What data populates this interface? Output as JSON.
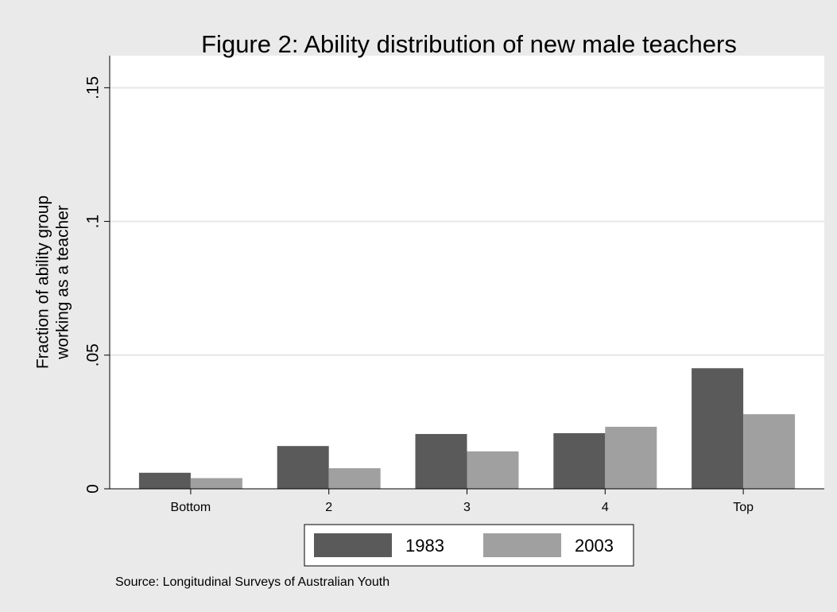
{
  "chart_data": {
    "type": "bar",
    "title": "Figure 2: Ability distribution of new male teachers",
    "y_label": [
      "Fraction of ability group",
      "working as a teacher"
    ],
    "note": "Source: Longitudinal Surveys of Australian Youth",
    "categories": [
      "Bottom",
      "2",
      "3",
      "4",
      "Top"
    ],
    "series": [
      {
        "name": "1983",
        "color": "#5a5a5a",
        "values": [
          0.006,
          0.016,
          0.0205,
          0.0208,
          0.0451
        ]
      },
      {
        "name": "2003",
        "color": "#a0a0a0",
        "values": [
          0.004,
          0.0077,
          0.014,
          0.0232,
          0.0279
        ]
      }
    ],
    "ylim": [
      0,
      0.162
    ],
    "yticks": [
      0,
      {
        "value": 0.05,
        "label": ".05"
      },
      {
        "value": 0.1,
        "label": ".1"
      },
      {
        "value": 0.15,
        "label": ".15"
      }
    ],
    "grid": true,
    "legend": "bottom"
  }
}
